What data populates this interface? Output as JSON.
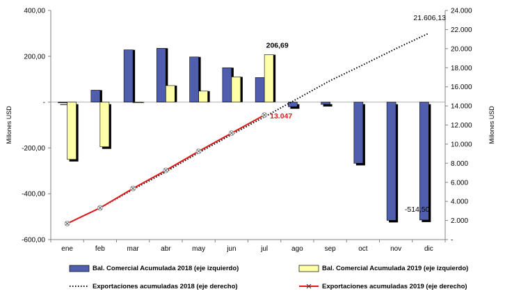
{
  "chart_data": {
    "type": "bar",
    "categories": [
      "ene",
      "feb",
      "mar",
      "abr",
      "may",
      "jun",
      "jul",
      "ago",
      "sep",
      "oct",
      "nov",
      "dic"
    ],
    "y_left": {
      "label": "Millones USD",
      "range": [
        -600,
        400
      ],
      "ticks": [
        400,
        200,
        0,
        -200,
        -400,
        -600
      ],
      "tick_labels": [
        "400,00",
        "200,00",
        "-",
        "-200,00",
        "-400,00",
        "-600,00"
      ]
    },
    "y_right": {
      "label": "Millones USD",
      "range": [
        0,
        24000
      ],
      "ticks": [
        24000,
        22000,
        20000,
        18000,
        16000,
        14000,
        12000,
        10000,
        8000,
        6000,
        4000,
        2000,
        0
      ],
      "tick_labels": [
        "24.000",
        "22.000",
        "20.000",
        "18.000",
        "16.000",
        "14.000",
        "12.000",
        "10.000",
        "8.000",
        "6.000",
        "4.000",
        "2.000",
        "-"
      ]
    },
    "series": [
      {
        "name": "Bal. Comercial Acumulada 2018 (eje izquierdo)",
        "type": "bar",
        "axis": "left",
        "color": "#4f5fae",
        "values": [
          -2,
          52,
          228,
          235,
          197,
          150,
          107,
          -20,
          -10,
          -267,
          -516,
          -514.5
        ]
      },
      {
        "name": "Bal. Comercial Acumulada 2019 (eje izquierdo)",
        "type": "bar",
        "axis": "left",
        "color": "#ffffa8",
        "values": [
          -250,
          -195,
          0,
          72,
          48,
          110,
          206.69,
          null,
          null,
          null,
          null,
          null
        ]
      },
      {
        "name": "Exportaciones acumuladas 2018 (eje derecho)",
        "type": "line",
        "axis": "right",
        "color": "#000000",
        "style": "dotted",
        "values": [
          1680,
          3320,
          5250,
          7100,
          9100,
          11000,
          12850,
          14750,
          16650,
          18300,
          20000,
          21606.13
        ]
      },
      {
        "name": "Exportaciones acumuladas 2019 (eje derecho)",
        "type": "line",
        "axis": "right",
        "color": "#e0191b",
        "style": "solid",
        "marker": "x",
        "values": [
          1680,
          3320,
          5350,
          7250,
          9250,
          11150,
          13047,
          null,
          null,
          null,
          null,
          null
        ]
      }
    ],
    "data_labels": [
      {
        "series": 1,
        "index": 6,
        "text": "206,69",
        "color": "#000000"
      },
      {
        "series": 3,
        "index": 6,
        "text": "13.047",
        "color": "#e0191b"
      },
      {
        "series": 2,
        "index": 11,
        "text": "21.606,13",
        "color": "#000000"
      },
      {
        "series": 0,
        "index": 11,
        "text": "-514,50",
        "color": "#000000"
      }
    ],
    "grid": false,
    "legend_position": "bottom"
  }
}
